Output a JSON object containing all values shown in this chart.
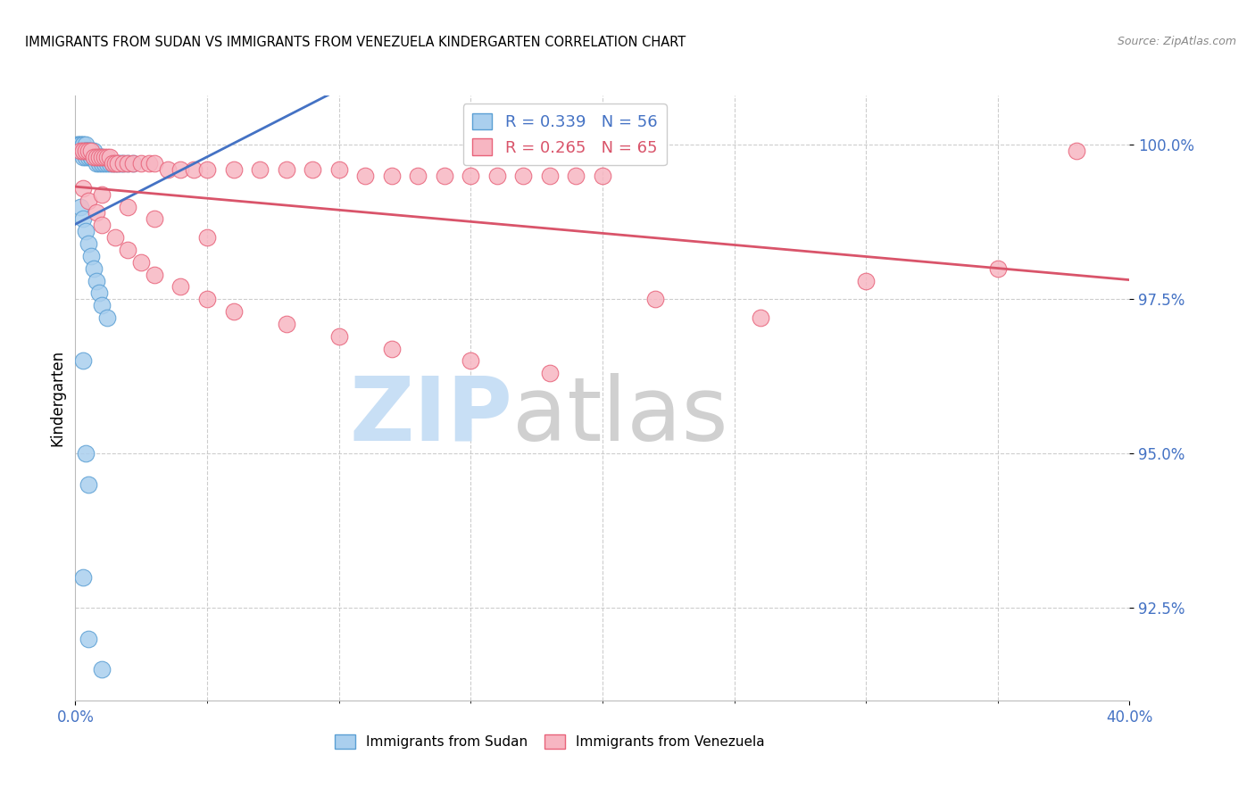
{
  "title": "IMMIGRANTS FROM SUDAN VS IMMIGRANTS FROM VENEZUELA KINDERGARTEN CORRELATION CHART",
  "source": "Source: ZipAtlas.com",
  "ylabel": "Kindergarten",
  "ytick_labels": [
    "100.0%",
    "97.5%",
    "95.0%",
    "92.5%"
  ],
  "ytick_values": [
    1.0,
    0.975,
    0.95,
    0.925
  ],
  "xlim": [
    0.0,
    0.4
  ],
  "ylim": [
    0.91,
    1.008
  ],
  "xtick_left": "0.0%",
  "xtick_right": "40.0%",
  "sudan_R": 0.339,
  "venezuela_R": 0.265,
  "sudan_N": 56,
  "venezuela_N": 65,
  "sudan_color": "#aacfee",
  "venezuela_color": "#f7b6c2",
  "sudan_edge_color": "#5a9fd4",
  "venezuela_edge_color": "#e8637a",
  "sudan_line_color": "#4472c4",
  "venezuela_line_color": "#d9546a",
  "background_color": "#ffffff",
  "grid_color": "#c8c8c8",
  "axis_label_color": "#4472c4",
  "watermark_zip_color": "#c8dff5",
  "watermark_atlas_color": "#d0d0d0",
  "sudan_x": [
    0.001,
    0.001,
    0.001,
    0.002,
    0.002,
    0.002,
    0.002,
    0.003,
    0.003,
    0.003,
    0.003,
    0.003,
    0.004,
    0.004,
    0.004,
    0.004,
    0.005,
    0.005,
    0.005,
    0.006,
    0.006,
    0.006,
    0.007,
    0.007,
    0.008,
    0.008,
    0.009,
    0.009,
    0.01,
    0.01,
    0.011,
    0.012,
    0.013,
    0.014,
    0.015,
    0.016,
    0.017,
    0.018,
    0.02,
    0.022,
    0.002,
    0.003,
    0.004,
    0.005,
    0.006,
    0.007,
    0.008,
    0.009,
    0.01,
    0.012,
    0.003,
    0.004,
    0.005,
    0.003,
    0.005,
    0.01
  ],
  "sudan_y": [
    1.0,
    1.0,
    0.999,
    1.0,
    1.0,
    0.999,
    0.999,
    1.0,
    1.0,
    0.999,
    0.999,
    0.998,
    1.0,
    0.999,
    0.999,
    0.998,
    0.999,
    0.999,
    0.998,
    0.999,
    0.998,
    0.998,
    0.999,
    0.998,
    0.998,
    0.997,
    0.998,
    0.997,
    0.998,
    0.997,
    0.997,
    0.997,
    0.997,
    0.997,
    0.997,
    0.997,
    0.997,
    0.997,
    0.997,
    0.997,
    0.99,
    0.988,
    0.986,
    0.984,
    0.982,
    0.98,
    0.978,
    0.976,
    0.974,
    0.972,
    0.965,
    0.95,
    0.945,
    0.93,
    0.92,
    0.915
  ],
  "venezuela_x": [
    0.002,
    0.003,
    0.004,
    0.005,
    0.006,
    0.007,
    0.008,
    0.009,
    0.01,
    0.011,
    0.012,
    0.013,
    0.014,
    0.015,
    0.016,
    0.018,
    0.02,
    0.022,
    0.025,
    0.028,
    0.03,
    0.035,
    0.04,
    0.045,
    0.05,
    0.06,
    0.07,
    0.08,
    0.09,
    0.1,
    0.11,
    0.12,
    0.13,
    0.14,
    0.15,
    0.16,
    0.17,
    0.18,
    0.19,
    0.2,
    0.003,
    0.005,
    0.008,
    0.01,
    0.015,
    0.02,
    0.025,
    0.03,
    0.04,
    0.05,
    0.06,
    0.08,
    0.1,
    0.12,
    0.15,
    0.18,
    0.22,
    0.26,
    0.3,
    0.35,
    0.38,
    0.01,
    0.02,
    0.03,
    0.05
  ],
  "venezuela_y": [
    0.999,
    0.999,
    0.999,
    0.999,
    0.999,
    0.998,
    0.998,
    0.998,
    0.998,
    0.998,
    0.998,
    0.998,
    0.997,
    0.997,
    0.997,
    0.997,
    0.997,
    0.997,
    0.997,
    0.997,
    0.997,
    0.996,
    0.996,
    0.996,
    0.996,
    0.996,
    0.996,
    0.996,
    0.996,
    0.996,
    0.995,
    0.995,
    0.995,
    0.995,
    0.995,
    0.995,
    0.995,
    0.995,
    0.995,
    0.995,
    0.993,
    0.991,
    0.989,
    0.987,
    0.985,
    0.983,
    0.981,
    0.979,
    0.977,
    0.975,
    0.973,
    0.971,
    0.969,
    0.967,
    0.965,
    0.963,
    0.975,
    0.972,
    0.978,
    0.98,
    0.999,
    0.992,
    0.99,
    0.988,
    0.985
  ]
}
